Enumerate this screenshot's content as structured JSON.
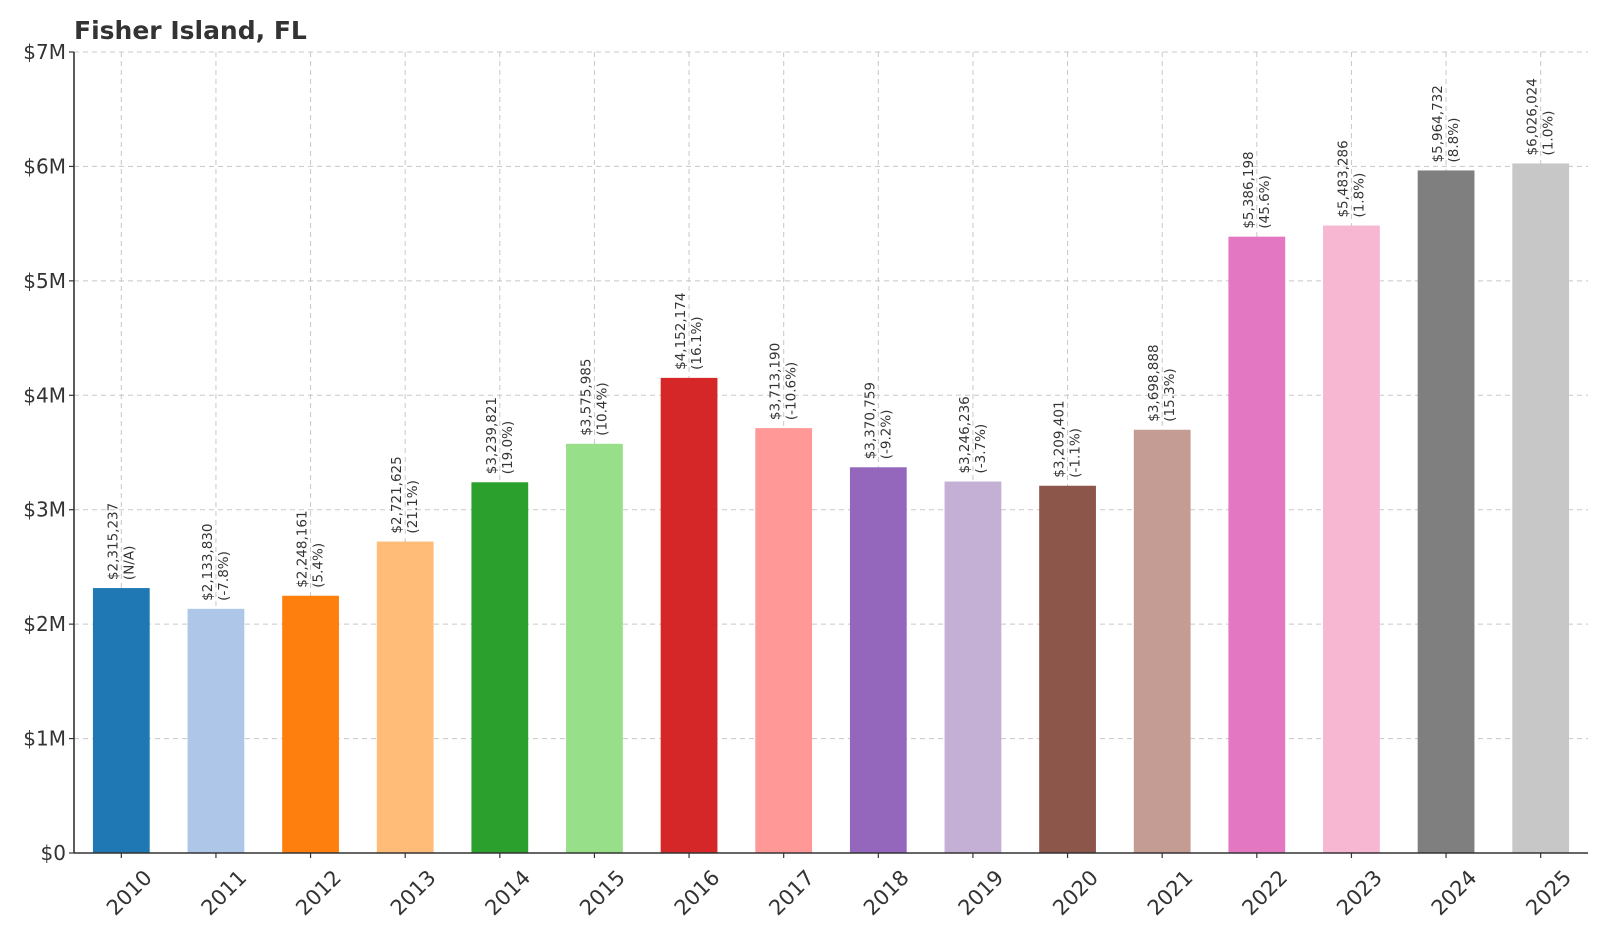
{
  "chart_data": {
    "type": "bar",
    "title": "Fisher Island, FL",
    "xlabel": "",
    "ylabel": "",
    "ylim": [
      0,
      7000000
    ],
    "yticks": [
      {
        "value": 0,
        "label": "$0"
      },
      {
        "value": 1000000,
        "label": "$1M"
      },
      {
        "value": 2000000,
        "label": "$2M"
      },
      {
        "value": 3000000,
        "label": "$3M"
      },
      {
        "value": 4000000,
        "label": "$4M"
      },
      {
        "value": 5000000,
        "label": "$5M"
      },
      {
        "value": 6000000,
        "label": "$6M"
      },
      {
        "value": 7000000,
        "label": "$7M"
      }
    ],
    "grid": true,
    "legend": "none",
    "categories": [
      "2010",
      "2011",
      "2012",
      "2013",
      "2014",
      "2015",
      "2016",
      "2017",
      "2018",
      "2019",
      "2020",
      "2021",
      "2022",
      "2023",
      "2024",
      "2025"
    ],
    "values": [
      2315237,
      2133830,
      2248161,
      2721625,
      3239821,
      3575985,
      4152174,
      3713190,
      3370759,
      3246236,
      3209401,
      3698888,
      5386198,
      5483286,
      5964732,
      6026024
    ],
    "value_labels": [
      "$2,315,237",
      "$2,133,830",
      "$2,248,161",
      "$2,721,625",
      "$3,239,821",
      "$3,575,985",
      "$4,152,174",
      "$3,713,190",
      "$3,370,759",
      "$3,246,236",
      "$3,209,401",
      "$3,698,888",
      "$5,386,198",
      "$5,483,286",
      "$5,964,732",
      "$6,026,024"
    ],
    "change_labels": [
      "(N/A)",
      "(-7.8%)",
      "(5.4%)",
      "(21.1%)",
      "(19.0%)",
      "(10.4%)",
      "(16.1%)",
      "(-10.6%)",
      "(-9.2%)",
      "(-3.7%)",
      "(-1.1%)",
      "(15.3%)",
      "(45.6%)",
      "(1.8%)",
      "(8.8%)",
      "(1.0%)"
    ],
    "colors": [
      "#1f77b4",
      "#aec7e8",
      "#ff7f0e",
      "#ffbb78",
      "#2ca02c",
      "#98df8a",
      "#d62728",
      "#ff9896",
      "#9467bd",
      "#c5b0d5",
      "#8c564b",
      "#c49c94",
      "#e377c2",
      "#f7b6d2",
      "#7f7f7f",
      "#c7c7c7"
    ]
  }
}
